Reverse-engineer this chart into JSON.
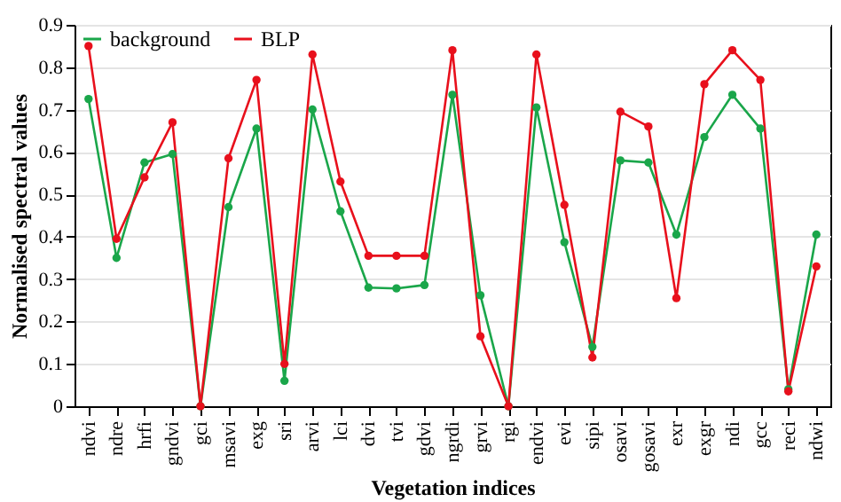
{
  "chart_data": {
    "type": "line",
    "xlabel": "Vegetation indices",
    "ylabel": "Normalised spectral values",
    "categories": [
      "ndvi",
      "ndre",
      "hrfi",
      "gndvi",
      "gci",
      "msavi",
      "exg",
      "sri",
      "arvi",
      "lci",
      "dvi",
      "tvi",
      "gdvi",
      "ngrdi",
      "grvi",
      "rgi",
      "endvi",
      "evi",
      "sipi",
      "osavi",
      "gosavi",
      "exr",
      "exgr",
      "ndi",
      "gcc",
      "reci",
      "ndwi"
    ],
    "series": [
      {
        "name": "background",
        "color": "#1aa64a",
        "values": [
          0.725,
          0.35,
          0.575,
          0.595,
          0,
          0.47,
          0.655,
          0.06,
          0.7,
          0.46,
          0.28,
          0.278,
          0.286,
          0.735,
          0.262,
          0,
          0.705,
          0.387,
          0.14,
          0.58,
          0.575,
          0.405,
          0.635,
          0.735,
          0.655,
          0.04,
          0.405
        ]
      },
      {
        "name": "BLP",
        "color": "#e8101c",
        "values": [
          0.85,
          0.395,
          0.54,
          0.67,
          0,
          0.585,
          0.77,
          0.1,
          0.83,
          0.53,
          0.355,
          0.355,
          0.355,
          0.84,
          0.165,
          0,
          0.83,
          0.475,
          0.115,
          0.695,
          0.66,
          0.255,
          0.76,
          0.84,
          0.77,
          0.035,
          0.33
        ]
      }
    ],
    "ylim": [
      0,
      0.9
    ],
    "yticks": [
      0,
      0.1,
      0.2,
      0.3,
      0.4,
      0.5,
      0.6,
      0.7,
      0.8,
      0.9
    ],
    "grid": true,
    "legend": "top left",
    "marker": "circle",
    "line_style": "solid"
  }
}
